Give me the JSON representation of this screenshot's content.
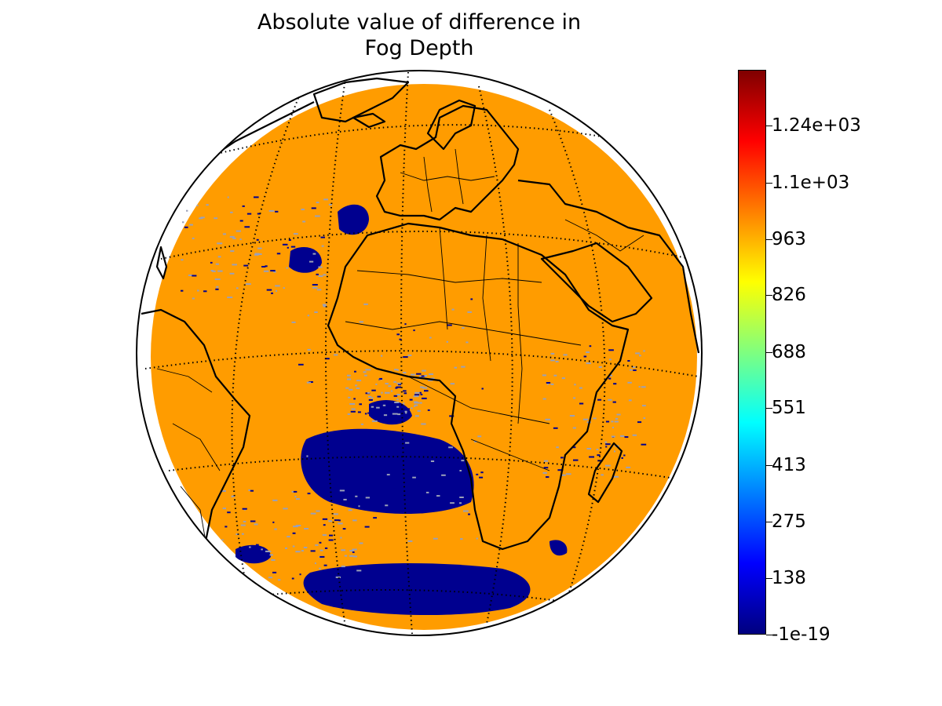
{
  "figure": {
    "title_line1": "Absolute value of difference in",
    "title_line2": "Fog Depth"
  },
  "map": {
    "projection": "orthographic",
    "ocean_fill_color": "#ff9c00",
    "low_value_color": "#00008f",
    "coastline_color": "#000000",
    "graticule_style": "dotted",
    "features": [
      "coastlines",
      "country-borders",
      "graticule"
    ]
  },
  "colorbar": {
    "colormap": "jet",
    "min": -1e-19,
    "max": 1375,
    "ticks": [
      {
        "value": -1e-19,
        "label": "-1e-19"
      },
      {
        "value": 138,
        "label": "138"
      },
      {
        "value": 275,
        "label": "275"
      },
      {
        "value": 413,
        "label": "413"
      },
      {
        "value": 551,
        "label": "551"
      },
      {
        "value": 688,
        "label": "688"
      },
      {
        "value": 826,
        "label": "826"
      },
      {
        "value": 963,
        "label": "963"
      },
      {
        "value": 1100,
        "label": "1.1e+03"
      },
      {
        "value": 1240,
        "label": "1.24e+03"
      }
    ]
  }
}
